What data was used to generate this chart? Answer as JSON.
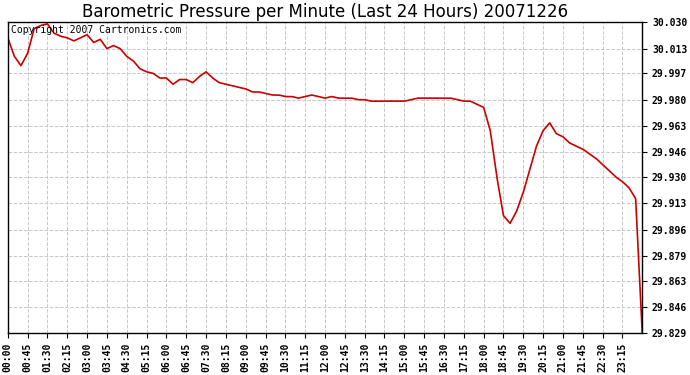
{
  "title": "Barometric Pressure per Minute (Last 24 Hours) 20071226",
  "copyright_text": "Copyright 2007 Cartronics.com",
  "line_color": "#cc0000",
  "background_color": "#ffffff",
  "grid_color": "#c8c8c8",
  "ylim": [
    29.829,
    30.03
  ],
  "yticks": [
    29.829,
    29.846,
    29.863,
    29.879,
    29.896,
    29.913,
    29.93,
    29.946,
    29.963,
    29.98,
    29.997,
    30.013,
    30.03
  ],
  "ytick_labels": [
    "29.829",
    "29.846",
    "29.863",
    "29.879",
    "29.896",
    "29.913",
    "29.930",
    "29.946",
    "29.963",
    "29.980",
    "29.997",
    "30.013",
    "30.030"
  ],
  "xtick_labels": [
    "00:00",
    "00:45",
    "01:30",
    "02:15",
    "03:00",
    "03:45",
    "04:30",
    "05:15",
    "06:00",
    "06:45",
    "07:30",
    "08:15",
    "09:00",
    "09:45",
    "10:30",
    "11:15",
    "12:00",
    "12:45",
    "13:30",
    "14:15",
    "15:00",
    "15:45",
    "16:30",
    "17:15",
    "18:00",
    "18:45",
    "19:30",
    "20:15",
    "21:00",
    "21:45",
    "22:30",
    "23:15"
  ],
  "title_fontsize": 12,
  "copyright_fontsize": 7,
  "tick_fontsize": 7,
  "line_width": 1.2,
  "key_pressures_minutes": [
    0,
    15,
    30,
    45,
    60,
    75,
    90,
    105,
    120,
    135,
    150,
    165,
    180,
    195,
    210,
    225,
    240,
    255,
    270,
    285,
    300,
    315,
    330,
    345,
    360,
    375,
    390,
    405,
    420,
    435,
    450,
    465,
    480,
    495,
    510,
    525,
    540,
    555,
    570,
    585,
    600,
    615,
    630,
    645,
    660,
    675,
    690,
    705,
    720,
    735,
    750,
    765,
    780,
    795,
    810,
    825,
    840,
    855,
    870,
    885,
    900,
    915,
    930,
    945,
    960,
    975,
    990,
    1005,
    1020,
    1035,
    1050,
    1065,
    1080,
    1095,
    1110,
    1125,
    1140,
    1155,
    1170,
    1185,
    1200,
    1215,
    1230,
    1245,
    1260,
    1275,
    1290,
    1305,
    1320,
    1335,
    1350,
    1365,
    1380,
    1395,
    1410,
    1425
  ],
  "key_pressures_values": [
    30.02,
    30.008,
    30.002,
    30.01,
    30.026,
    30.028,
    30.029,
    30.023,
    30.021,
    30.02,
    30.018,
    30.02,
    30.022,
    30.017,
    30.019,
    30.013,
    30.015,
    30.013,
    30.008,
    30.005,
    30.0,
    29.998,
    29.997,
    29.994,
    29.994,
    29.99,
    29.993,
    29.993,
    29.991,
    29.995,
    29.998,
    29.994,
    29.991,
    29.99,
    29.989,
    29.988,
    29.987,
    29.985,
    29.985,
    29.984,
    29.983,
    29.983,
    29.982,
    29.982,
    29.981,
    29.982,
    29.983,
    29.982,
    29.981,
    29.982,
    29.981,
    29.981,
    29.981,
    29.98,
    29.98,
    29.979,
    29.979,
    29.979,
    29.979,
    29.979,
    29.979,
    29.98,
    29.981,
    29.981,
    29.981,
    29.981,
    29.981,
    29.981,
    29.98,
    29.979,
    29.979,
    29.977,
    29.975,
    29.96,
    29.93,
    29.905,
    29.9,
    29.908,
    29.92,
    29.935,
    29.95,
    29.96,
    29.965,
    29.958,
    29.956,
    29.952,
    29.95,
    29.948,
    29.945,
    29.942,
    29.938,
    29.934,
    29.93,
    29.927,
    29.923,
    29.916
  ],
  "extra_minutes": [
    1440
  ],
  "extra_values": [
    29.829
  ]
}
